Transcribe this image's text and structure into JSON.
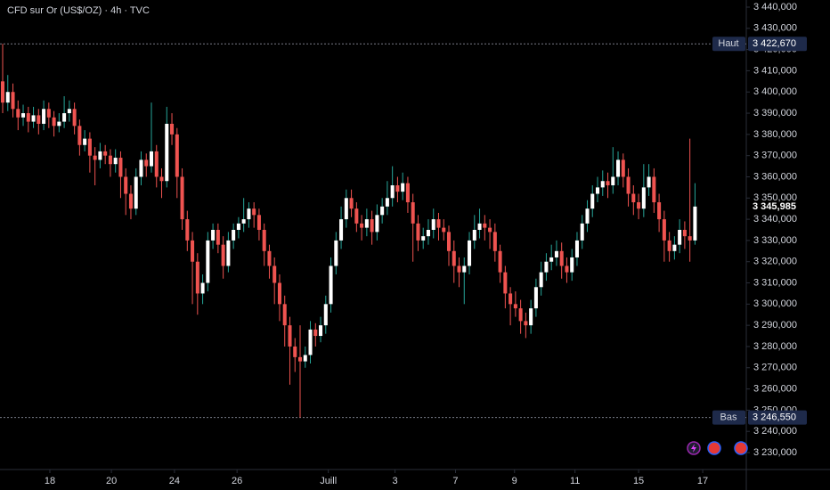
{
  "chart_data": {
    "type": "candlestick",
    "title": "CFD sur Or (US$/OZ) · 4h · TVC",
    "up_color": "#ffffff",
    "up_wick_color": "#26a69a",
    "down_color": "#ef5350",
    "candles": [
      [
        3405,
        3422.67,
        3390,
        3395
      ],
      [
        3395,
        3408,
        3391,
        3400
      ],
      [
        3400,
        3404,
        3388,
        3392
      ],
      [
        3392,
        3396,
        3382,
        3388
      ],
      [
        3388,
        3394,
        3384,
        3390
      ],
      [
        3390,
        3393,
        3381,
        3386
      ],
      [
        3386,
        3393,
        3383,
        3389
      ],
      [
        3389,
        3392,
        3380,
        3385
      ],
      [
        3385,
        3396,
        3382,
        3392
      ],
      [
        3392,
        3395,
        3383,
        3388
      ],
      [
        3388,
        3391,
        3379,
        3384
      ],
      [
        3384,
        3390,
        3381,
        3386
      ],
      [
        3386,
        3398,
        3383,
        3390
      ],
      [
        3390,
        3396,
        3386,
        3392
      ],
      [
        3392,
        3395,
        3380,
        3384
      ],
      [
        3384,
        3387,
        3370,
        3375
      ],
      [
        3375,
        3382,
        3372,
        3378
      ],
      [
        3378,
        3381,
        3362,
        3370
      ],
      [
        3370,
        3374,
        3356,
        3368
      ],
      [
        3368,
        3376,
        3364,
        3372
      ],
      [
        3372,
        3375,
        3366,
        3370
      ],
      [
        3370,
        3373,
        3360,
        3366
      ],
      [
        3366,
        3373,
        3362,
        3369
      ],
      [
        3369,
        3372,
        3350,
        3360
      ],
      [
        3360,
        3364,
        3342,
        3352
      ],
      [
        3352,
        3356,
        3340,
        3345
      ],
      [
        3345,
        3364,
        3342,
        3360
      ],
      [
        3360,
        3372,
        3356,
        3368
      ],
      [
        3368,
        3371,
        3360,
        3365
      ],
      [
        3365,
        3395,
        3362,
        3372
      ],
      [
        3372,
        3375,
        3355,
        3360
      ],
      [
        3360,
        3364,
        3350,
        3358
      ],
      [
        3358,
        3393,
        3355,
        3385
      ],
      [
        3385,
        3390,
        3375,
        3380
      ],
      [
        3380,
        3383,
        3350,
        3360
      ],
      [
        3360,
        3364,
        3335,
        3340
      ],
      [
        3340,
        3344,
        3325,
        3330
      ],
      [
        3330,
        3334,
        3300,
        3320
      ],
      [
        3320,
        3324,
        3295,
        3305
      ],
      [
        3305,
        3314,
        3300,
        3310
      ],
      [
        3310,
        3334,
        3306,
        3330
      ],
      [
        3330,
        3338,
        3326,
        3335
      ],
      [
        3335,
        3338,
        3324,
        3328
      ],
      [
        3328,
        3332,
        3312,
        3318
      ],
      [
        3318,
        3334,
        3315,
        3330
      ],
      [
        3330,
        3338,
        3326,
        3335
      ],
      [
        3335,
        3341,
        3331,
        3338
      ],
      [
        3338,
        3350,
        3334,
        3340
      ],
      [
        3340,
        3348,
        3336,
        3345
      ],
      [
        3345,
        3348,
        3336,
        3342
      ],
      [
        3342,
        3345,
        3330,
        3335
      ],
      [
        3335,
        3338,
        3318,
        3325
      ],
      [
        3325,
        3328,
        3312,
        3318
      ],
      [
        3318,
        3322,
        3300,
        3310
      ],
      [
        3310,
        3314,
        3292,
        3300
      ],
      [
        3300,
        3304,
        3280,
        3290
      ],
      [
        3290,
        3294,
        3262,
        3280
      ],
      [
        3280,
        3284,
        3268,
        3275
      ],
      [
        3275,
        3290,
        3246.55,
        3273
      ],
      [
        3273,
        3280,
        3270,
        3276
      ],
      [
        3276,
        3292,
        3272,
        3288
      ],
      [
        3288,
        3291,
        3280,
        3285
      ],
      [
        3285,
        3294,
        3282,
        3290
      ],
      [
        3290,
        3304,
        3286,
        3300
      ],
      [
        3300,
        3322,
        3296,
        3318
      ],
      [
        3318,
        3334,
        3314,
        3330
      ],
      [
        3330,
        3346,
        3326,
        3340
      ],
      [
        3340,
        3354,
        3336,
        3350
      ],
      [
        3350,
        3354,
        3341,
        3345
      ],
      [
        3345,
        3348,
        3334,
        3338
      ],
      [
        3338,
        3342,
        3330,
        3336
      ],
      [
        3336,
        3345,
        3332,
        3340
      ],
      [
        3340,
        3344,
        3328,
        3334
      ],
      [
        3334,
        3347,
        3330,
        3342
      ],
      [
        3342,
        3350,
        3338,
        3346
      ],
      [
        3346,
        3358,
        3342,
        3350
      ],
      [
        3350,
        3365,
        3346,
        3356
      ],
      [
        3356,
        3360,
        3348,
        3353
      ],
      [
        3353,
        3362,
        3349,
        3357
      ],
      [
        3357,
        3360,
        3343,
        3348
      ],
      [
        3348,
        3352,
        3320,
        3338
      ],
      [
        3338,
        3342,
        3325,
        3330
      ],
      [
        3330,
        3336,
        3326,
        3332
      ],
      [
        3332,
        3340,
        3328,
        3335
      ],
      [
        3335,
        3345,
        3331,
        3340
      ],
      [
        3340,
        3343,
        3330,
        3336
      ],
      [
        3336,
        3340,
        3330,
        3334
      ],
      [
        3334,
        3337,
        3318,
        3325
      ],
      [
        3325,
        3330,
        3310,
        3318
      ],
      [
        3318,
        3322,
        3308,
        3315
      ],
      [
        3315,
        3322,
        3300,
        3318
      ],
      [
        3318,
        3334,
        3314,
        3330
      ],
      [
        3330,
        3342,
        3326,
        3335
      ],
      [
        3335,
        3345,
        3331,
        3338
      ],
      [
        3338,
        3342,
        3330,
        3336
      ],
      [
        3336,
        3340,
        3326,
        3334
      ],
      [
        3334,
        3338,
        3320,
        3325
      ],
      [
        3325,
        3328,
        3310,
        3315
      ],
      [
        3315,
        3318,
        3298,
        3305
      ],
      [
        3305,
        3308,
        3290,
        3300
      ],
      [
        3300,
        3306,
        3294,
        3298
      ],
      [
        3298,
        3302,
        3286,
        3292
      ],
      [
        3292,
        3296,
        3284,
        3290
      ],
      [
        3290,
        3302,
        3286,
        3298
      ],
      [
        3298,
        3312,
        3294,
        3308
      ],
      [
        3308,
        3320,
        3304,
        3315
      ],
      [
        3315,
        3324,
        3311,
        3320
      ],
      [
        3320,
        3328,
        3316,
        3322
      ],
      [
        3322,
        3330,
        3318,
        3325
      ],
      [
        3325,
        3329,
        3312,
        3318
      ],
      [
        3318,
        3322,
        3310,
        3315
      ],
      [
        3315,
        3326,
        3311,
        3322
      ],
      [
        3322,
        3334,
        3318,
        3330
      ],
      [
        3330,
        3342,
        3326,
        3338
      ],
      [
        3338,
        3349,
        3334,
        3345
      ],
      [
        3345,
        3356,
        3341,
        3352
      ],
      [
        3352,
        3360,
        3348,
        3355
      ],
      [
        3355,
        3363,
        3351,
        3358
      ],
      [
        3358,
        3362,
        3350,
        3356
      ],
      [
        3356,
        3374,
        3352,
        3360
      ],
      [
        3360,
        3372,
        3356,
        3368
      ],
      [
        3368,
        3371,
        3355,
        3360
      ],
      [
        3360,
        3364,
        3346,
        3352
      ],
      [
        3352,
        3356,
        3342,
        3348
      ],
      [
        3348,
        3352,
        3340,
        3345
      ],
      [
        3345,
        3366,
        3341,
        3355
      ],
      [
        3355,
        3366,
        3351,
        3360
      ],
      [
        3360,
        3364,
        3343,
        3348
      ],
      [
        3348,
        3352,
        3334,
        3340
      ],
      [
        3340,
        3344,
        3320,
        3330
      ],
      [
        3330,
        3334,
        3320,
        3325
      ],
      [
        3325,
        3332,
        3321,
        3328
      ],
      [
        3328,
        3340,
        3324,
        3335
      ],
      [
        3335,
        3339,
        3326,
        3332
      ],
      [
        3332,
        3378,
        3320,
        3330
      ],
      [
        3330,
        3357,
        3328,
        3345.985
      ]
    ],
    "last_price_label": "3 345,985",
    "xlim": [
      0,
      145
    ],
    "xticks": [
      {
        "value": 9.2,
        "label": "18"
      },
      {
        "value": 21.2,
        "label": "20"
      },
      {
        "value": 33.5,
        "label": "24"
      },
      {
        "value": 45.7,
        "label": "26"
      },
      {
        "value": 63.5,
        "label": "Juill"
      },
      {
        "value": 76.5,
        "label": "3"
      },
      {
        "value": 88.3,
        "label": "7"
      },
      {
        "value": 99.8,
        "label": "9"
      },
      {
        "value": 111.6,
        "label": "11"
      },
      {
        "value": 124,
        "label": "15"
      },
      {
        "value": 136.5,
        "label": "17"
      }
    ],
    "ylim": [
      3230,
      3440
    ],
    "yticks": [
      {
        "value": 3230,
        "label": "3 230,000"
      },
      {
        "value": 3240,
        "label": "3 240,000"
      },
      {
        "value": 3250,
        "label": "3 250,000"
      },
      {
        "value": 3260,
        "label": "3 260,000"
      },
      {
        "value": 3270,
        "label": "3 270,000"
      },
      {
        "value": 3280,
        "label": "3 280,000"
      },
      {
        "value": 3290,
        "label": "3 290,000"
      },
      {
        "value": 3300,
        "label": "3 300,000"
      },
      {
        "value": 3310,
        "label": "3 310,000"
      },
      {
        "value": 3320,
        "label": "3 320,000"
      },
      {
        "value": 3330,
        "label": "3 330,000"
      },
      {
        "value": 3340,
        "label": "3 340,000"
      },
      {
        "value": 3350,
        "label": "3 350,000"
      },
      {
        "value": 3360,
        "label": "3 360,000"
      },
      {
        "value": 3370,
        "label": "3 370,000"
      },
      {
        "value": 3380,
        "label": "3 380,000"
      },
      {
        "value": 3390,
        "label": "3 390,000"
      },
      {
        "value": 3400,
        "label": "3 400,000"
      },
      {
        "value": 3410,
        "label": "3 410,000"
      },
      {
        "value": 3420,
        "label": "3 420,000"
      },
      {
        "value": 3430,
        "label": "3 430,000"
      },
      {
        "value": 3440,
        "label": "3 440,000"
      }
    ],
    "reference_lines": [
      {
        "name": "Haut",
        "value": 3422.67,
        "value_label": "3 422,670"
      },
      {
        "name": "Bas",
        "value": 3246.55,
        "value_label": "3 246,550"
      }
    ]
  }
}
